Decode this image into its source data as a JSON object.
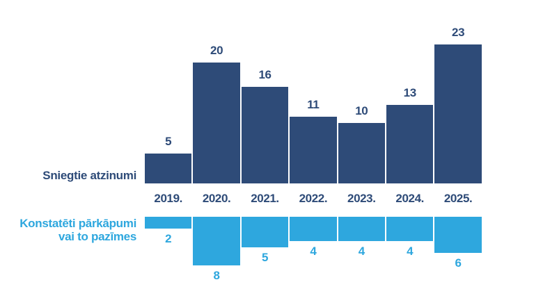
{
  "chart_data": {
    "type": "bar",
    "orientation": "diverging-vertical",
    "title": "",
    "background": "#ffffff",
    "legend_position": "left",
    "grid": false,
    "categories": [
      "2019.",
      "2020.",
      "2021.",
      "2022.",
      "2023.",
      "2024.",
      "2025."
    ],
    "series": [
      {
        "name": "Sniegtie atzinumi",
        "direction": "up",
        "color": "#2e4b78",
        "values": [
          5,
          20,
          16,
          11,
          10,
          13,
          23
        ]
      },
      {
        "name": "Konstatēti pārkāpumi vai to pazīmes",
        "name_lines": [
          "Konstatēti pārkāpumi",
          "vai to pazīmes"
        ],
        "direction": "down",
        "color": "#2ea7de",
        "values": [
          2,
          8,
          5,
          4,
          4,
          4,
          6
        ]
      }
    ],
    "value_labels_shown": true,
    "axis": {
      "x_labels_suffix": ".",
      "y_axis_shown": false
    }
  }
}
